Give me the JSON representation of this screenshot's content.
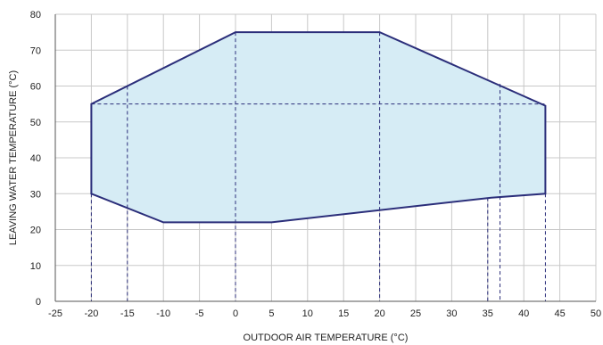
{
  "chart_data": {
    "type": "area",
    "title": "",
    "xlabel": "OUTDOOR AIR TEMPERATURE (°C)",
    "ylabel": "LEAVING WATER TEMPERATURE (°C)",
    "xlim": [
      -25,
      50
    ],
    "ylim": [
      0,
      80
    ],
    "x_ticks": [
      -25,
      -20,
      -15,
      -10,
      -5,
      0,
      5,
      10,
      15,
      20,
      25,
      30,
      35,
      40,
      45,
      50
    ],
    "y_ticks": [
      0,
      10,
      20,
      30,
      40,
      50,
      60,
      70,
      80
    ],
    "grid": true,
    "legend": "none",
    "series": [
      {
        "x": [
          -20,
          0,
          20,
          43,
          43,
          35.5,
          5,
          -10,
          -20
        ],
        "y": [
          55,
          75,
          75,
          54.5,
          30,
          28.9,
          22,
          22,
          30
        ],
        "closed": true,
        "fill_color": "#d6ecf5",
        "line_color": "#2b2e7a"
      }
    ],
    "reference_lines": [
      {
        "from": [
          -20,
          55
        ],
        "to": [
          43,
          55
        ]
      },
      {
        "from": [
          -20,
          30
        ],
        "to": [
          -20,
          0
        ]
      },
      {
        "from": [
          -15,
          60
        ],
        "to": [
          -15,
          0
        ]
      },
      {
        "from": [
          0,
          75
        ],
        "to": [
          0,
          0
        ]
      },
      {
        "from": [
          20,
          75
        ],
        "to": [
          20,
          0
        ]
      },
      {
        "from": [
          35,
          28.9
        ],
        "to": [
          35,
          0
        ]
      },
      {
        "from": [
          36.7,
          60.6
        ],
        "to": [
          36.7,
          0
        ]
      },
      {
        "from": [
          43,
          30
        ],
        "to": [
          43,
          0
        ]
      }
    ],
    "colors": {
      "grid": "#c8c8c8",
      "axis": "#555555",
      "reference": "#2b2e7a"
    }
  }
}
